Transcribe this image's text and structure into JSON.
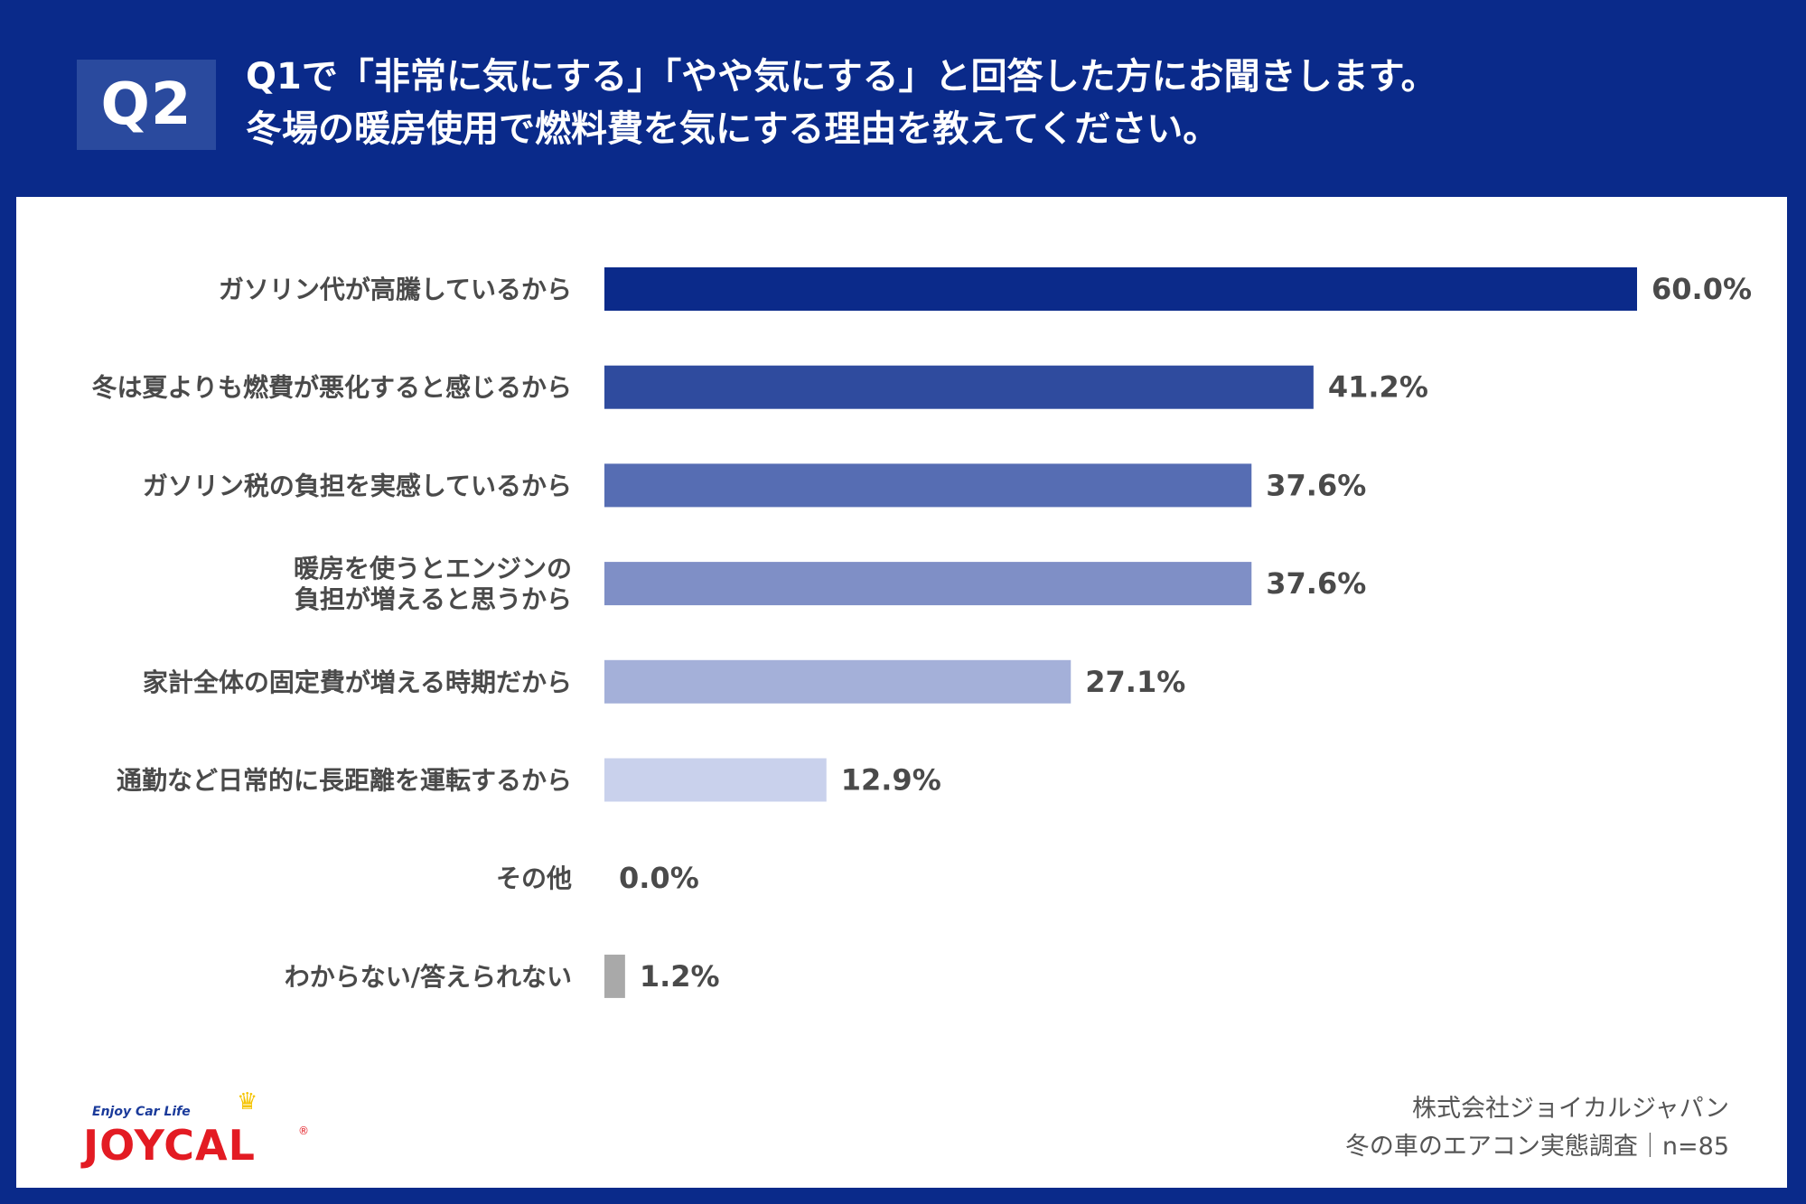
{
  "header": {
    "badge": "Q2",
    "title_line1": "Q1で「非常に気にする」「やや気にする」と回答した方にお聞きします。",
    "title_line2": "冬場の暖房使用で燃料費を気にする理由を教えてください。"
  },
  "chart_data": {
    "type": "bar",
    "orientation": "horizontal",
    "categories": [
      [
        "ガソリン代が高騰しているから"
      ],
      [
        "冬は夏よりも燃費が悪化すると感じるから"
      ],
      [
        "ガソリン税の負担を実感しているから"
      ],
      [
        "暖房を使うとエンジンの",
        "負担が増えると思うから"
      ],
      [
        "家計全体の固定費が増える時期だから"
      ],
      [
        "通勤など日常的に長距離を運転するから"
      ],
      [
        "その他"
      ],
      [
        "わからない/答えられない"
      ]
    ],
    "values": [
      60.0,
      41.2,
      37.6,
      37.6,
      27.1,
      12.9,
      0.0,
      1.2
    ],
    "value_labels": [
      "60.0%",
      "41.2%",
      "37.6%",
      "37.6%",
      "27.1%",
      "12.9%",
      "0.0%",
      "1.2%"
    ],
    "colors": [
      "#0b2a8a",
      "#2f4b9e",
      "#566db3",
      "#7f8fc6",
      "#a4b0d9",
      "#c9d1ec",
      "#c9d1ec",
      "#a9a9a9"
    ],
    "xlim": [
      0,
      60
    ],
    "unit": "%",
    "grid": false,
    "legend": "none"
  },
  "logo": {
    "tagline": "Enjoy Car Life",
    "wordmark": "JOYCAL",
    "reg": "®"
  },
  "source": {
    "line1": "株式会社ジョイカルジャパン",
    "line2": "冬の車のエアコン実態調査｜n=85"
  }
}
